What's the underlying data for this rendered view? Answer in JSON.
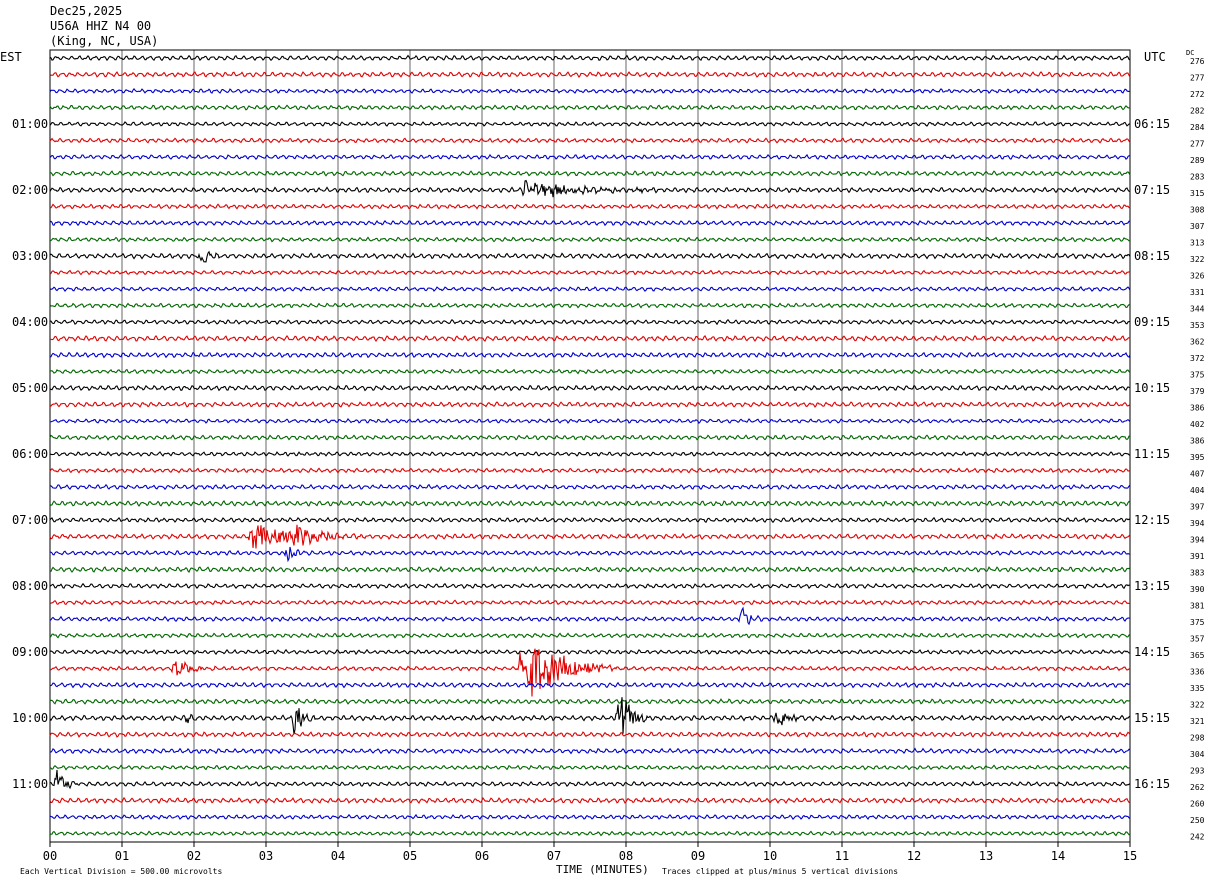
{
  "header": {
    "date": "Dec25,2025",
    "station": "U56A HHZ N4 00",
    "location": "(King, NC, USA)"
  },
  "corner_labels": {
    "left": "EST",
    "right": "UTC",
    "dc": "DC"
  },
  "footer": {
    "scale_note": "Each Vertical Division =  500.00 microvolts",
    "xaxis_title": "TIME (MINUTES)",
    "clip_note": "Traces clipped at plus/minus 5 vertical divisions"
  },
  "chart_data": {
    "type": "helicorder",
    "title": "Dec25,2025 U56A HHZ N4 00 (King, NC, USA)",
    "xlabel": "TIME (MINUTES)",
    "x_ticks": [
      "00",
      "01",
      "02",
      "03",
      "04",
      "05",
      "06",
      "07",
      "08",
      "09",
      "10",
      "11",
      "12",
      "13",
      "14",
      "15"
    ],
    "xlim": [
      0,
      15
    ],
    "left_time_labels": [
      "01:00",
      "02:00",
      "03:00",
      "04:00",
      "05:00",
      "06:00",
      "07:00",
      "08:00",
      "09:00",
      "10:00",
      "11:00"
    ],
    "right_time_labels": [
      "06:15",
      "07:15",
      "08:15",
      "09:15",
      "10:15",
      "11:15",
      "12:15",
      "13:15",
      "14:15",
      "15:15",
      "16:15"
    ],
    "dc_offsets": [
      276,
      277,
      272,
      282,
      284,
      277,
      289,
      283,
      315,
      308,
      307,
      313,
      322,
      326,
      331,
      344,
      353,
      362,
      372,
      375,
      379,
      386,
      402,
      386,
      395,
      407,
      404,
      397,
      394,
      394,
      391,
      383,
      390,
      381,
      375,
      357,
      365,
      336,
      335,
      322,
      321,
      298,
      304,
      293,
      262,
      260,
      250,
      242
    ],
    "trace_colors": [
      "#000000",
      "#e00000",
      "#0000cc",
      "#006600"
    ],
    "traces_per_hour": 4,
    "minutes_per_trace": 15,
    "events": [
      {
        "trace": 8,
        "minute": 6.6,
        "amp": 1.2,
        "dur": 2.0
      },
      {
        "trace": 12,
        "minute": 2.1,
        "amp": 1.5,
        "dur": 0.3
      },
      {
        "trace": 29,
        "minute": 2.8,
        "amp": 2.0,
        "dur": 1.2
      },
      {
        "trace": 29,
        "minute": 3.4,
        "amp": 1.8,
        "dur": 1.0
      },
      {
        "trace": 30,
        "minute": 3.3,
        "amp": 1.0,
        "dur": 0.3
      },
      {
        "trace": 34,
        "minute": 9.6,
        "amp": 2.0,
        "dur": 0.3
      },
      {
        "trace": 37,
        "minute": 1.7,
        "amp": 1.6,
        "dur": 0.6
      },
      {
        "trace": 37,
        "minute": 6.55,
        "amp": 5.0,
        "dur": 1.3
      },
      {
        "trace": 37,
        "minute": 7.15,
        "amp": 2.2,
        "dur": 0.4
      },
      {
        "trace": 40,
        "minute": 1.9,
        "amp": 1.2,
        "dur": 0.2
      },
      {
        "trace": 40,
        "minute": 3.4,
        "amp": 2.5,
        "dur": 0.3
      },
      {
        "trace": 40,
        "minute": 7.9,
        "amp": 5.0,
        "dur": 0.4
      },
      {
        "trace": 40,
        "minute": 10.1,
        "amp": 1.4,
        "dur": 0.5
      },
      {
        "trace": 44,
        "minute": 0.1,
        "amp": 2.5,
        "dur": 0.3
      }
    ]
  }
}
